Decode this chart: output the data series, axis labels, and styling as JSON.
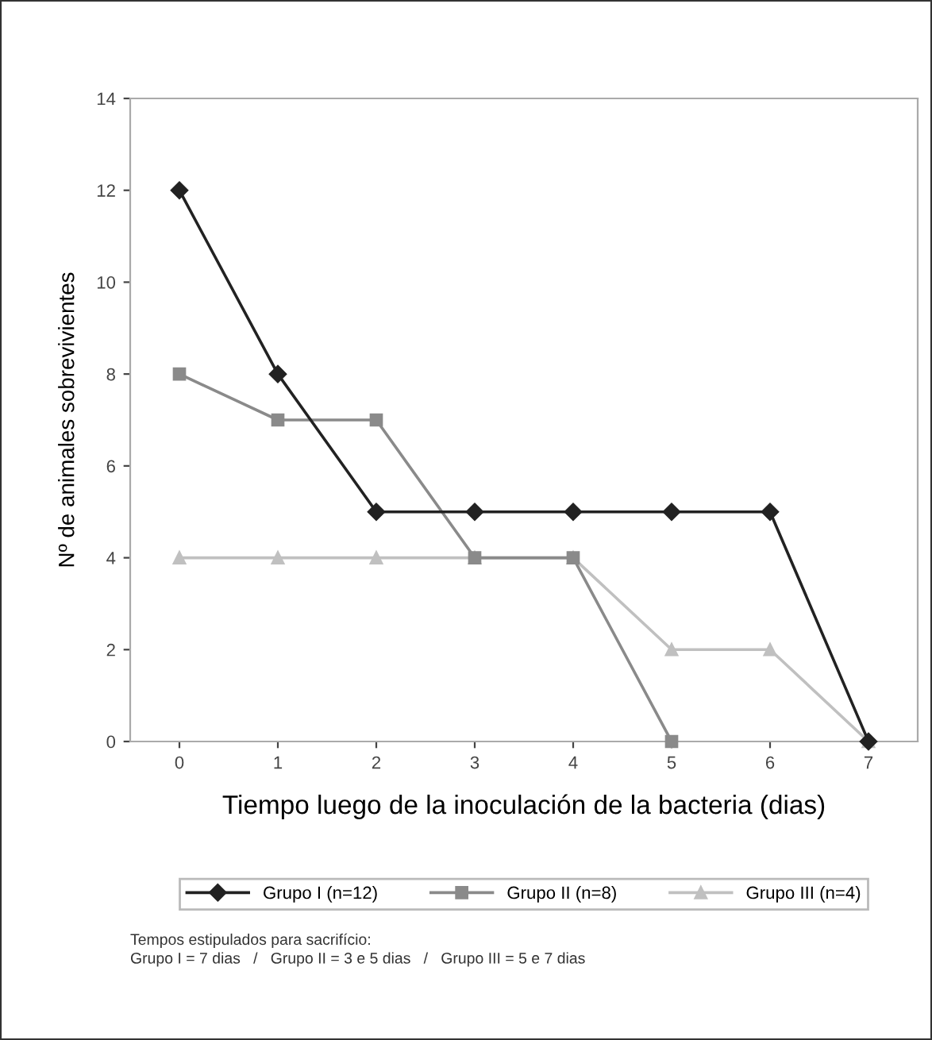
{
  "chart_data": {
    "type": "line",
    "xlabel": "Tiempo luego de la inoculación de la bacteria (dias)",
    "ylabel": "Nº de animales sobrevivientes",
    "categories": [
      "0",
      "1",
      "2",
      "3",
      "4",
      "5",
      "6",
      "7"
    ],
    "series": [
      {
        "name": "Grupo I (n=12)",
        "color": "#222222",
        "marker": "diamond",
        "values": [
          12,
          8,
          5,
          5,
          5,
          5,
          5,
          0
        ]
      },
      {
        "name": "Grupo II (n=8)",
        "color": "#8a8a8a",
        "marker": "square",
        "values": [
          8,
          7,
          7,
          4,
          4,
          0,
          null,
          null
        ]
      },
      {
        "name": "Grupo III (n=4)",
        "color": "#c0c0c0",
        "marker": "triangle",
        "values": [
          4,
          4,
          4,
          4,
          4,
          2,
          2,
          0
        ]
      }
    ],
    "ylim": [
      0,
      14
    ],
    "yticks": [
      0,
      2,
      4,
      6,
      8,
      10,
      12,
      14
    ],
    "grid": false,
    "legend": "bottom",
    "line_style": "solid",
    "annotations": [
      "Tempos estipulados para sacrifício:",
      "Grupo I = 7 dias   /   Grupo II = 3 e 5 dias   /   Grupo III = 5 e 7 dias"
    ]
  }
}
